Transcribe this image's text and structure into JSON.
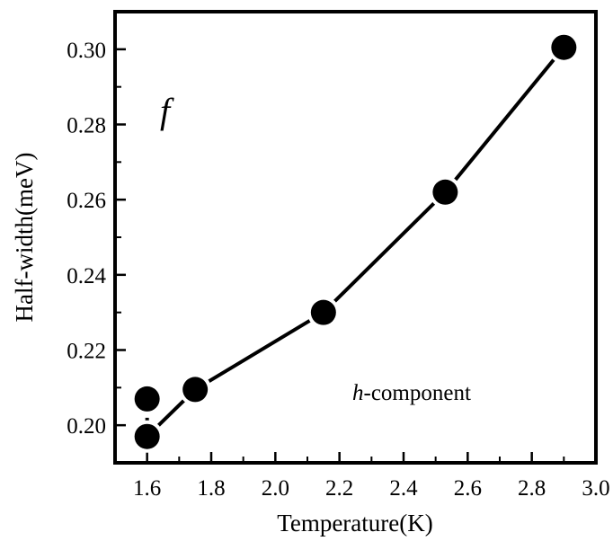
{
  "chart_data": {
    "type": "line",
    "xlabel": "Temperature(K)",
    "ylabel": "Half-width(meV)",
    "xlim": [
      1.5,
      3.0
    ],
    "ylim": [
      0.19,
      0.31
    ],
    "x_ticks": [
      "1.6",
      "1.8",
      "2.0",
      "2.2",
      "2.4",
      "2.6",
      "2.8",
      "3.0"
    ],
    "y_ticks": [
      "0.20",
      "0.22",
      "0.24",
      "0.26",
      "0.28",
      "0.30"
    ],
    "panel_label": "f",
    "annotation": {
      "italic": "h",
      "text": "-component"
    },
    "series": [
      {
        "marker": "filled-circle",
        "color": "#000000",
        "x": [
          1.6,
          1.6,
          1.75,
          2.15,
          2.53,
          2.9
        ],
        "y": [
          0.207,
          0.197,
          0.2095,
          0.23,
          0.262,
          0.3005
        ]
      }
    ],
    "grid": false
  }
}
